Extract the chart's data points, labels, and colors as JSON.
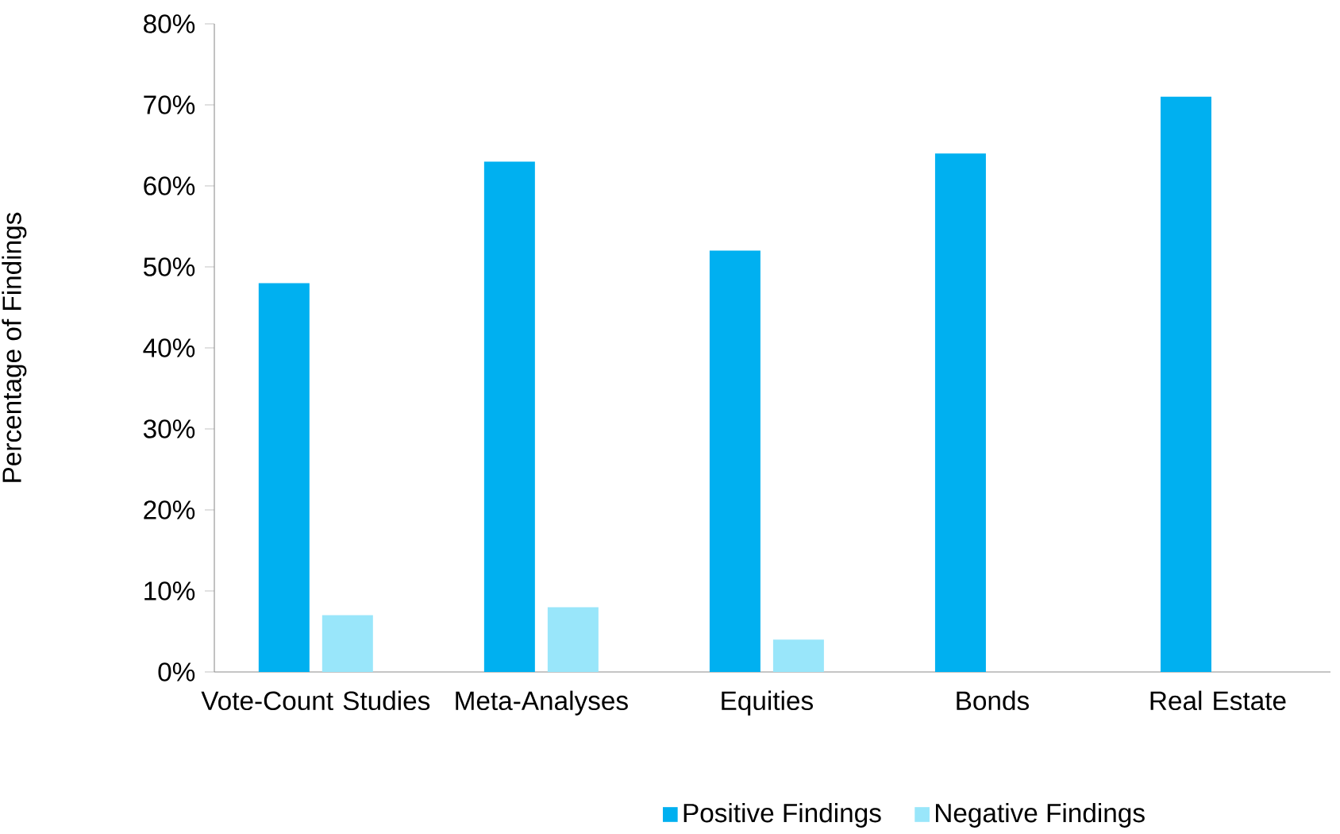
{
  "chart_data": {
    "type": "bar",
    "ylabel": "Percentage of Findings",
    "categories": [
      "Vote-Count Studies",
      "Meta-Analyses",
      "Equities",
      "Bonds",
      "Real Estate"
    ],
    "series": [
      {
        "name": "Positive Findings",
        "color": "#00b0f0",
        "values": [
          48,
          63,
          52,
          64,
          71
        ]
      },
      {
        "name": "Negative Findings",
        "color": "#99e6fa",
        "values": [
          7,
          8,
          4,
          null,
          null
        ]
      }
    ],
    "ylim": [
      0,
      80
    ],
    "yticks": [
      {
        "value": 0,
        "label": "0%"
      },
      {
        "value": 10,
        "label": "10%"
      },
      {
        "value": 20,
        "label": "20%"
      },
      {
        "value": 30,
        "label": "30%"
      },
      {
        "value": 40,
        "label": "40%"
      },
      {
        "value": 50,
        "label": "50%"
      },
      {
        "value": 60,
        "label": "60%"
      },
      {
        "value": 70,
        "label": "70%"
      },
      {
        "value": 80,
        "label": "80%"
      }
    ],
    "grid": false,
    "legend": "bottom"
  }
}
